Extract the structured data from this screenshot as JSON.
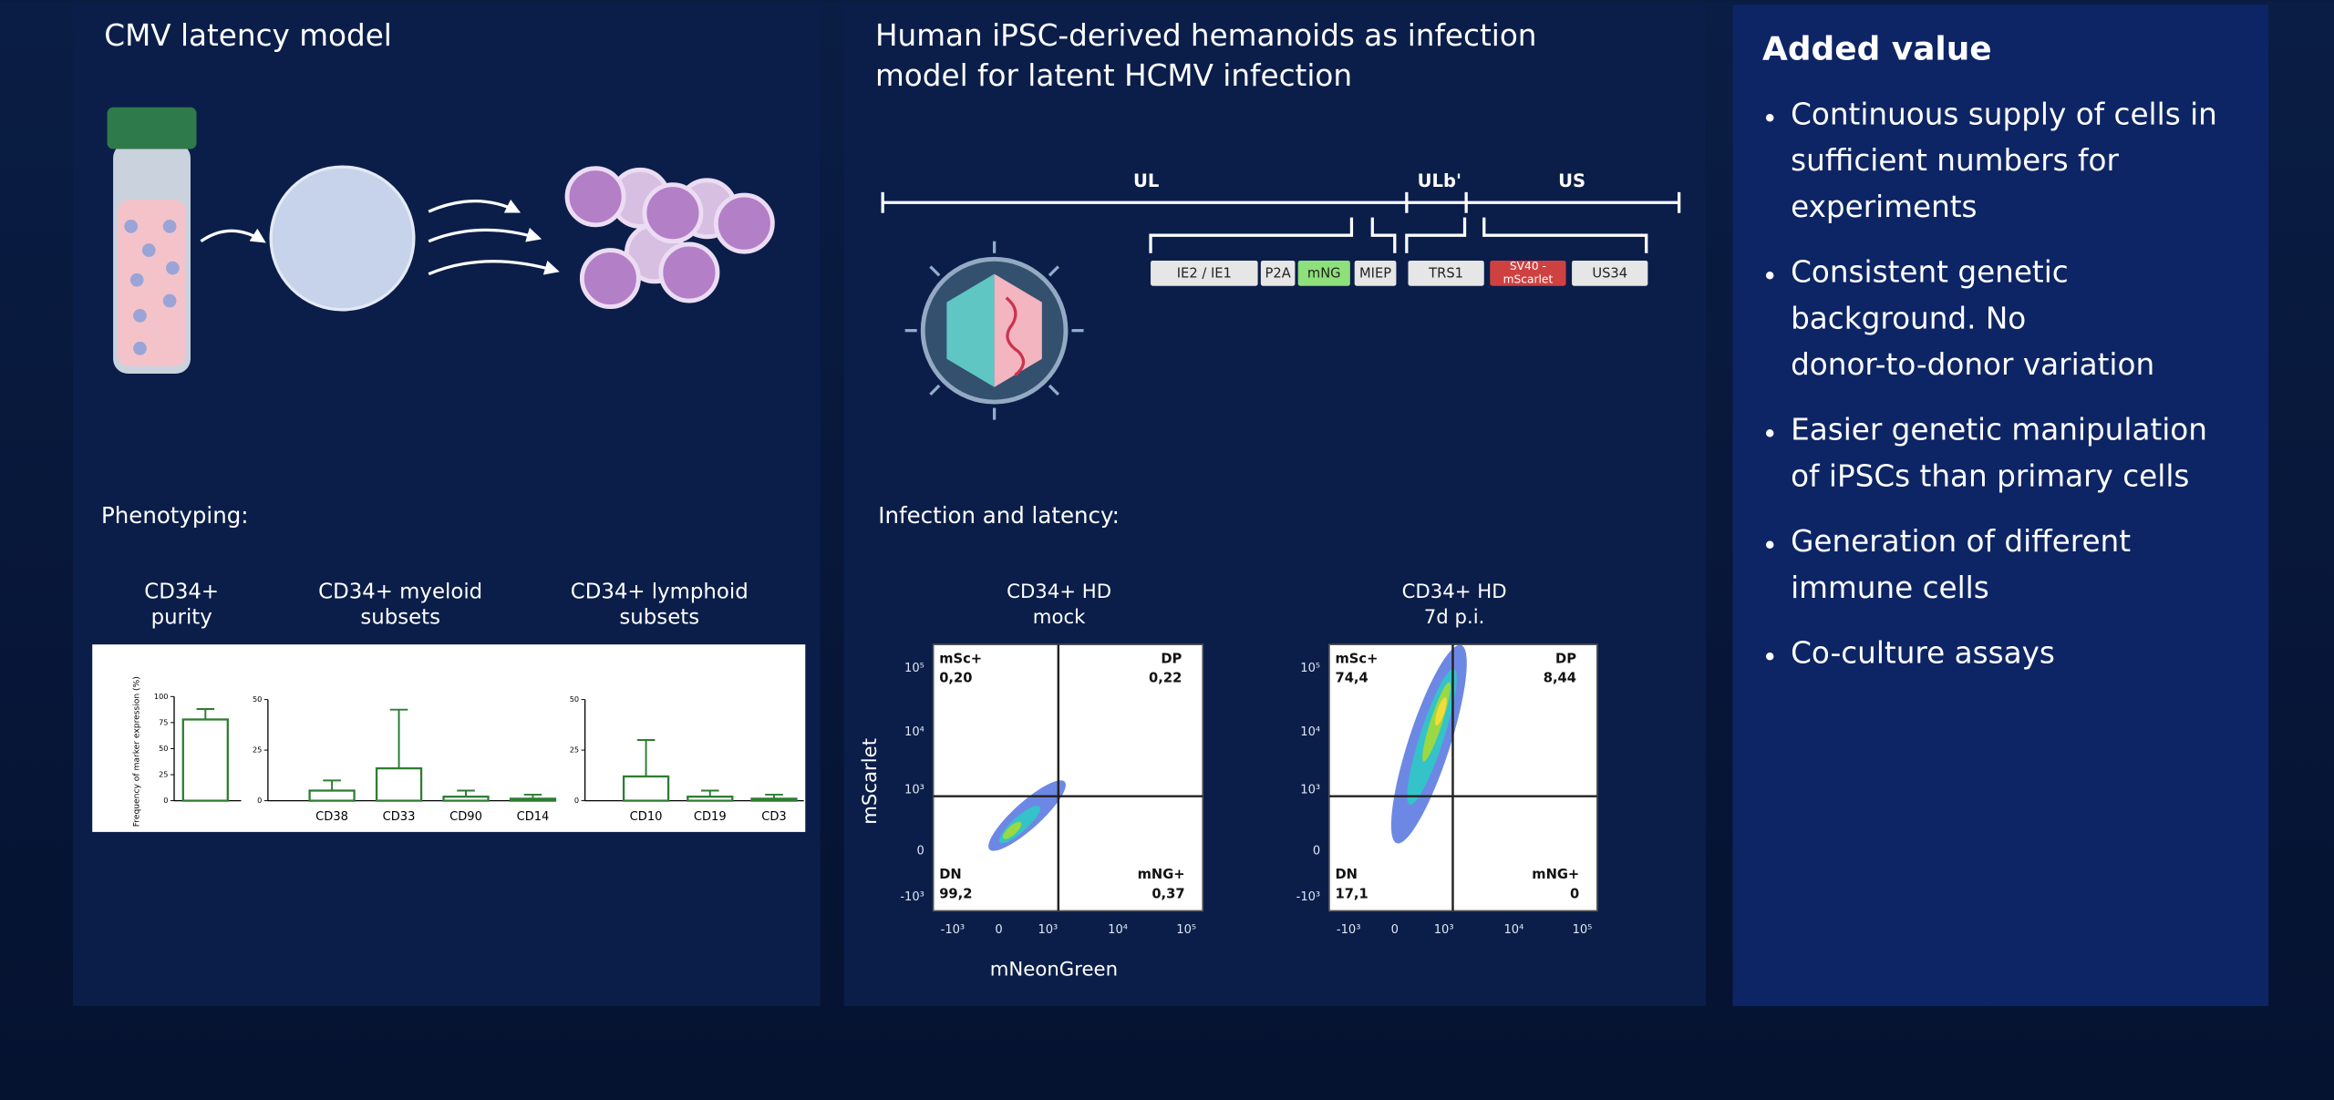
{
  "latency_panel": {
    "title": "CMV latency model",
    "phenotyping_label": "Phenotyping:",
    "subset_headers": [
      [
        "CD34+",
        "purity"
      ],
      [
        "CD34+ myeloid",
        "subsets"
      ],
      [
        "CD34+ lymphoid",
        "subsets"
      ]
    ]
  },
  "chart_data": [
    {
      "type": "bar",
      "ylabel": "Frequency of marker expression (%)",
      "categories": [
        null
      ],
      "values": [
        78
      ],
      "errors": [
        10
      ],
      "color": "#2e7d32",
      "ylim": [
        0,
        100
      ],
      "yticks": [
        0,
        25,
        50,
        75,
        100
      ]
    },
    {
      "type": "bar",
      "categories": [
        "CD38",
        "CD33",
        "CD90",
        "CD14"
      ],
      "values": [
        5,
        16,
        2,
        1
      ],
      "errors": [
        5,
        29,
        3,
        2
      ],
      "color": "#2e7d32",
      "ylim": [
        0,
        50
      ],
      "yticks": [
        0,
        25,
        50
      ]
    },
    {
      "type": "bar",
      "categories": [
        "CD10",
        "CD19",
        "CD3"
      ],
      "values": [
        12,
        2,
        1
      ],
      "errors": [
        18,
        3,
        2
      ],
      "color": "#2e7d32",
      "ylim": [
        0,
        50
      ],
      "yticks": [
        0,
        25,
        50
      ]
    }
  ],
  "infection_panel": {
    "title": [
      "Human iPSC-derived hemanoids as infection",
      "model for latent HCMV infection"
    ],
    "genome_regions": [
      "UL",
      "ULb'",
      "US"
    ],
    "genome_elements": [
      "IE2 / IE1",
      "P2A",
      "mNG",
      "MIEP",
      "TRS1",
      [
        "SV40 -",
        "mScarlet"
      ],
      "US34"
    ],
    "infection_label": "Infection and latency:",
    "y_axis_label": "mScarlet",
    "x_axis_label": "mNeonGreen",
    "y_ticks": [
      "10⁵",
      "10⁴",
      "10³",
      "0",
      "-10³"
    ],
    "x_ticks": [
      "-10³",
      "0",
      "10³",
      "10⁴",
      "10⁵"
    ],
    "plots": [
      {
        "header": [
          "CD34+ HD",
          "mock"
        ],
        "quadrants": [
          [
            "mSc+",
            "0,20"
          ],
          [
            "DP",
            "0,22"
          ],
          [
            "DN",
            "99,2"
          ],
          [
            "mNG+",
            "0,37"
          ]
        ]
      },
      {
        "header": [
          "CD34+ HD",
          "7d p.i."
        ],
        "quadrants": [
          [
            "mSc+",
            "74,4"
          ],
          [
            "DP",
            "8,44"
          ],
          [
            "DN",
            "17,1"
          ],
          [
            "mNG+",
            "0"
          ]
        ]
      }
    ]
  },
  "added_value": {
    "title": "Added value",
    "bullets": [
      [
        "Continuous supply of cells in",
        "sufficient numbers for",
        "experiments"
      ],
      [
        "Consistent genetic",
        "background. No",
        "donor-to-donor variation"
      ],
      [
        "Easier genetic manipulation",
        "of iPSCs than primary cells"
      ],
      [
        "Generation of different",
        "immune cells"
      ],
      [
        "Co-culture assays"
      ]
    ]
  }
}
